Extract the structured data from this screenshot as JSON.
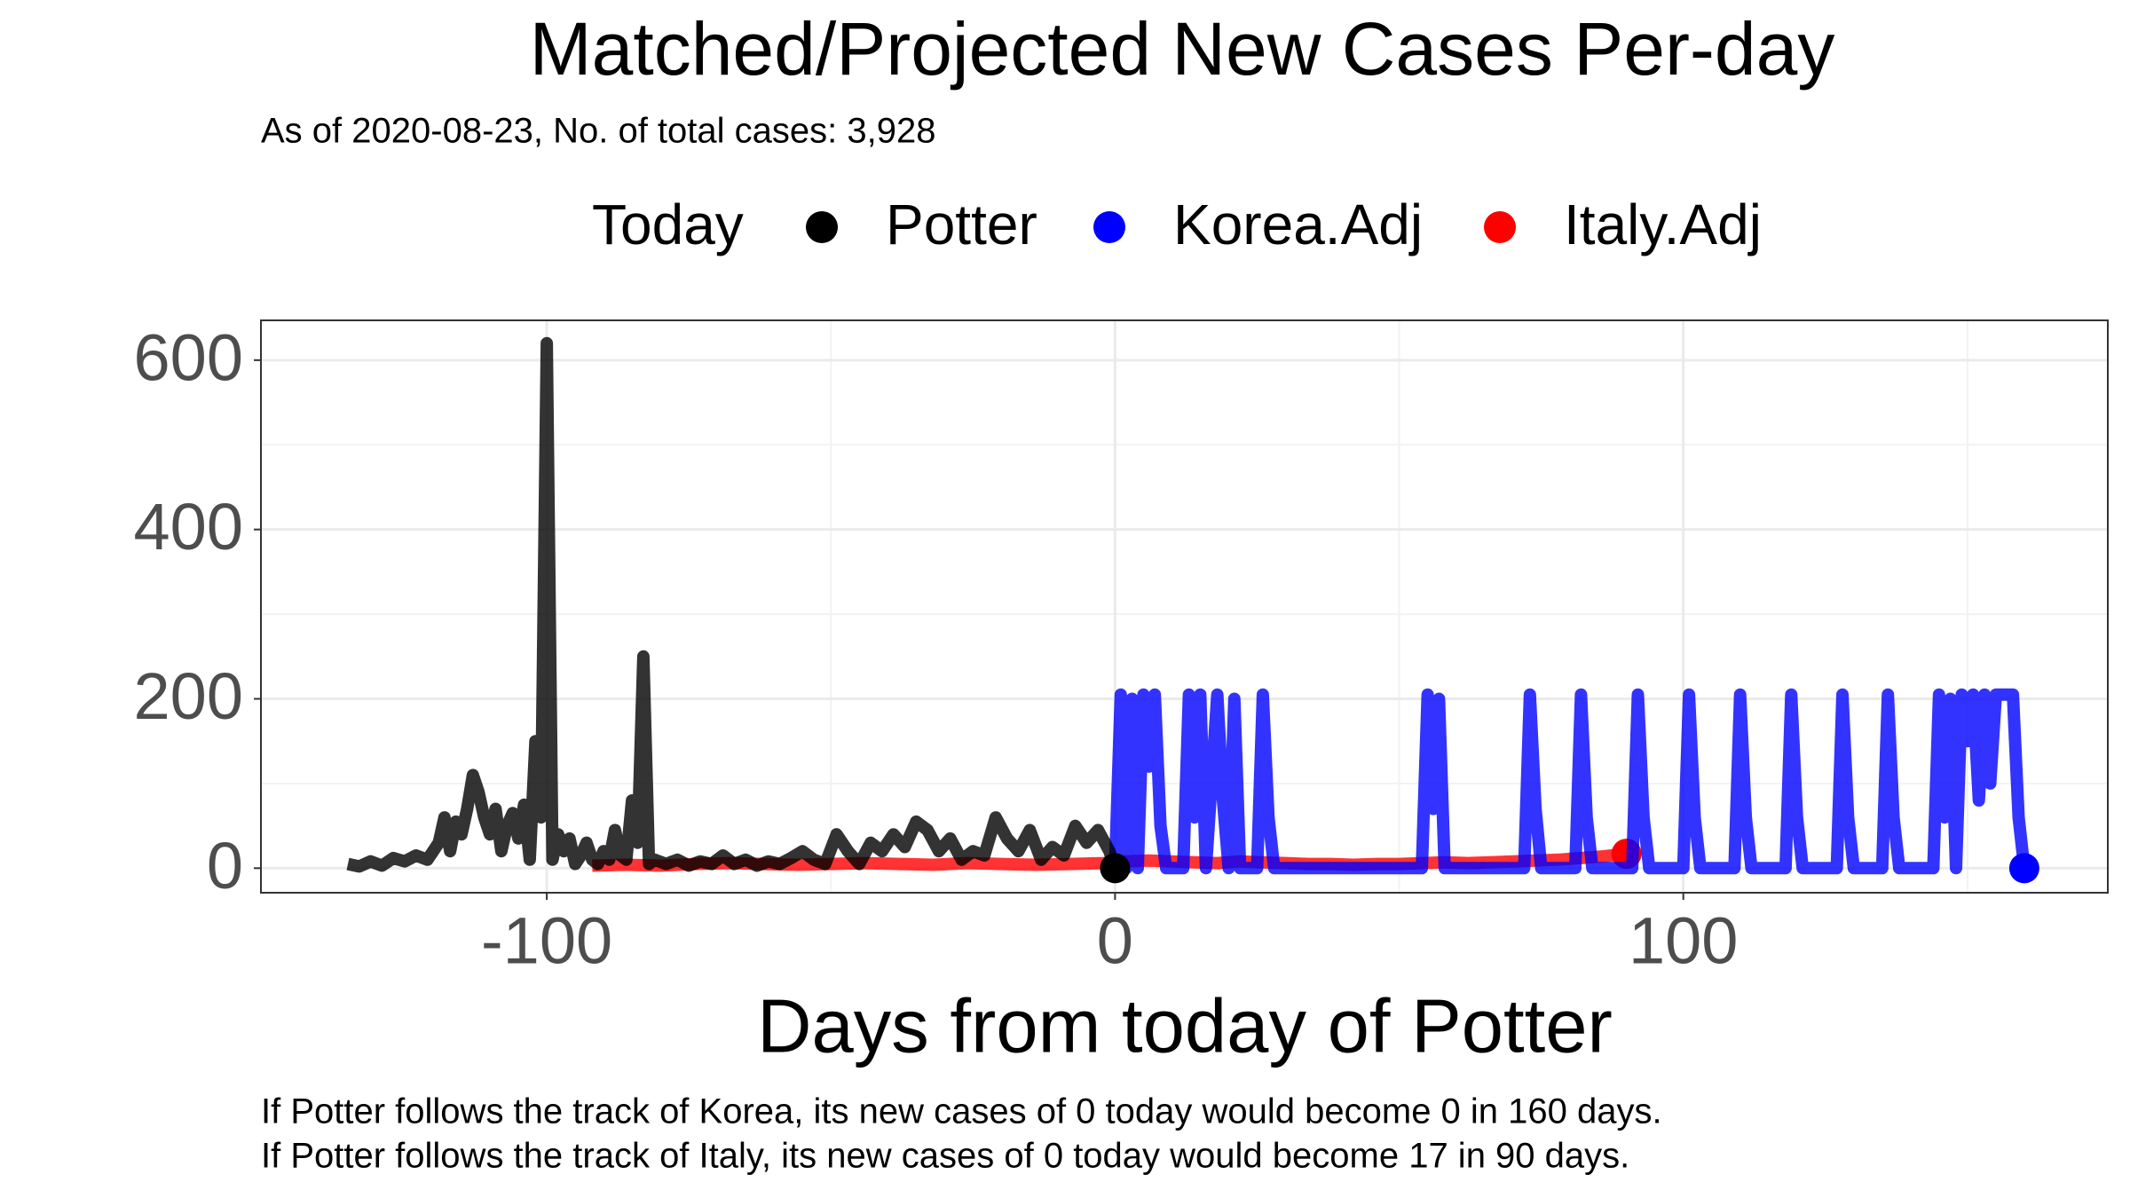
{
  "chart_data": {
    "type": "line",
    "title": "Matched/Projected New Cases Per-day",
    "subtitle": "As of 2020-08-23, No. of total cases: 3,928",
    "xlabel": "Days from today of Potter",
    "legend_title": "Today",
    "captions": [
      "If Potter follows the track of Korea, its new cases of 0 today would become 0 in 160 days.",
      "If Potter follows the track of Italy, its new cases of 0 today would become 17 in 90 days."
    ],
    "xlim": [
      -150.3,
      174.7
    ],
    "ylim": [
      -29,
      647
    ],
    "xticks": [
      -100,
      0,
      100
    ],
    "yticks": [
      0,
      200,
      400,
      600
    ],
    "xminor": [
      -50,
      50,
      150
    ],
    "yminor": [
      100,
      300,
      500
    ],
    "grid": true,
    "series": [
      {
        "name": "Italy.Adj",
        "color": "#ff0000",
        "x": [
          -92,
          -86,
          -80,
          -74,
          -68,
          -62,
          -56,
          -50,
          -44,
          -38,
          -32,
          -26,
          -20,
          -14,
          -8,
          -2,
          2,
          6,
          10,
          14,
          18,
          22,
          26,
          30,
          34,
          38,
          42,
          46,
          50,
          54,
          58,
          62,
          66,
          70,
          74,
          78,
          82,
          86,
          90
        ],
        "values": [
          3,
          4,
          3,
          5,
          6,
          5,
          4,
          5,
          6,
          5,
          4,
          6,
          5,
          4,
          5,
          6,
          8,
          9,
          8,
          7,
          6,
          8,
          7,
          6,
          5,
          5,
          4,
          5,
          5,
          6,
          7,
          6,
          7,
          8,
          9,
          10,
          12,
          14,
          17
        ]
      },
      {
        "name": "Korea.Adj",
        "color": "#0000ff",
        "x": [
          0,
          1,
          2,
          3,
          4,
          5,
          6,
          7,
          8,
          9,
          10,
          12,
          13,
          14,
          15,
          16,
          18,
          19,
          20,
          21,
          22,
          25,
          26,
          27,
          28,
          30,
          54,
          55,
          56,
          57,
          58,
          72,
          73,
          74,
          75,
          76,
          81,
          82,
          83,
          84,
          85,
          91,
          92,
          93,
          94,
          100,
          101,
          102,
          103,
          109,
          110,
          111,
          112,
          118,
          119,
          120,
          121,
          127,
          128,
          129,
          130,
          135,
          136,
          137,
          138,
          144,
          145,
          146,
          147,
          148,
          149,
          150,
          151,
          152,
          153,
          154,
          155,
          156,
          157,
          158,
          159,
          160
        ],
        "values": [
          0,
          205,
          0,
          200,
          0,
          205,
          120,
          205,
          50,
          0,
          0,
          0,
          205,
          60,
          205,
          0,
          205,
          80,
          0,
          200,
          0,
          0,
          205,
          60,
          0,
          0,
          0,
          205,
          70,
          200,
          0,
          0,
          205,
          70,
          0,
          0,
          0,
          205,
          60,
          0,
          0,
          0,
          205,
          60,
          0,
          0,
          205,
          60,
          0,
          0,
          205,
          60,
          0,
          0,
          205,
          60,
          0,
          0,
          205,
          60,
          0,
          0,
          205,
          60,
          0,
          0,
          205,
          60,
          200,
          0,
          205,
          150,
          205,
          80,
          205,
          100,
          205,
          205,
          205,
          205,
          60,
          0
        ]
      },
      {
        "name": "Potter",
        "color": "#000000",
        "x": [
          -135,
          -133,
          -131,
          -129,
          -127,
          -125,
          -123,
          -121,
          -119,
          -118,
          -117,
          -116,
          -115,
          -114,
          -113,
          -112,
          -111,
          -110,
          -109,
          -108,
          -107,
          -106,
          -105,
          -104,
          -103,
          -102,
          -101,
          -100,
          -99,
          -98,
          -97,
          -96,
          -95,
          -94,
          -93,
          -92,
          -91,
          -90,
          -89,
          -88,
          -87,
          -86,
          -85,
          -84,
          -83,
          -82,
          -81,
          -79,
          -77,
          -75,
          -73,
          -71,
          -69,
          -67,
          -65,
          -63,
          -61,
          -59,
          -57,
          -55,
          -53,
          -51,
          -49,
          -47,
          -45,
          -43,
          -41,
          -39,
          -37,
          -35,
          -33,
          -31,
          -29,
          -27,
          -25,
          -23,
          -21,
          -19,
          -17,
          -15,
          -13,
          -11,
          -9,
          -7,
          -5,
          -3,
          -1,
          0
        ],
        "values": [
          5,
          2,
          8,
          3,
          12,
          8,
          15,
          10,
          30,
          60,
          20,
          55,
          40,
          70,
          110,
          90,
          60,
          40,
          70,
          20,
          50,
          65,
          35,
          75,
          10,
          150,
          60,
          620,
          10,
          40,
          20,
          35,
          5,
          15,
          30,
          10,
          5,
          20,
          10,
          45,
          15,
          10,
          80,
          30,
          250,
          5,
          10,
          5,
          10,
          3,
          8,
          5,
          15,
          5,
          10,
          3,
          8,
          5,
          12,
          20,
          10,
          5,
          40,
          20,
          5,
          30,
          20,
          40,
          25,
          55,
          45,
          20,
          35,
          10,
          20,
          15,
          60,
          35,
          20,
          45,
          10,
          25,
          15,
          50,
          30,
          45,
          20,
          0
        ]
      }
    ]
  }
}
